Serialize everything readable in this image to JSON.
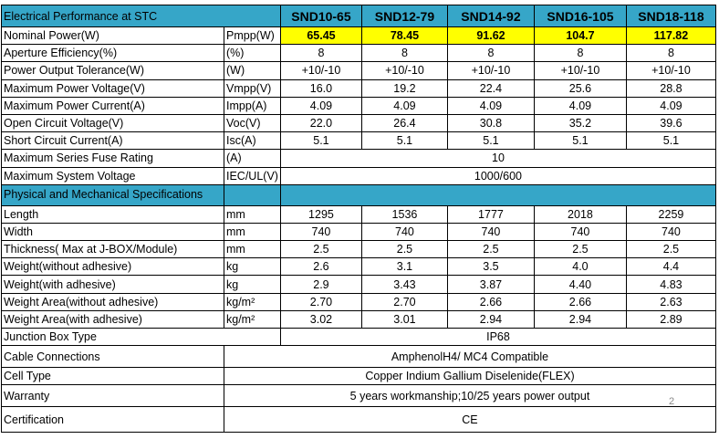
{
  "header": {
    "title": "Electrical Performance at STC",
    "models": [
      "SND10-65",
      "SND12-79",
      "SND14-92",
      "SND16-105",
      "SND18-118"
    ]
  },
  "electrical": {
    "nominal_power": {
      "label": "Nominal Power(W)",
      "unit": "Pmpp(W)",
      "values": [
        "65.45",
        "78.45",
        "91.62",
        "104.7",
        "117.82"
      ]
    },
    "aperture_efficiency": {
      "label": "Aperture Efficiency(%)",
      "unit": "(%)",
      "values": [
        "8",
        "8",
        "8",
        "8",
        "8"
      ]
    },
    "power_tolerance": {
      "label": "Power Output Tolerance(W)",
      "unit": "(W)",
      "values": [
        "+10/-10",
        "+10/-10",
        "+10/-10",
        "+10/-10",
        "+10/-10"
      ]
    },
    "max_power_voltage": {
      "label": "Maximum Power Voltage(V)",
      "unit": "Vmpp(V)",
      "values": [
        "16.0",
        "19.2",
        "22.4",
        "25.6",
        "28.8"
      ]
    },
    "max_power_current": {
      "label": "Maximum Power Current(A)",
      "unit": "Impp(A)",
      "values": [
        "4.09",
        "4.09",
        "4.09",
        "4.09",
        "4.09"
      ]
    },
    "open_circuit_voltage": {
      "label": "Open Circuit Voltage(V)",
      "unit": "Voc(V)",
      "values": [
        "22.0",
        "26.4",
        "30.8",
        "35.2",
        "39.6"
      ]
    },
    "short_circuit_current": {
      "label": "Short Circuit Current(A)",
      "unit": "Isc(A)",
      "values": [
        "5.1",
        "5.1",
        "5.1",
        "5.1",
        "5.1"
      ]
    },
    "max_series_fuse": {
      "label": "Maximum Series Fuse Rating",
      "unit": "(A)",
      "value": "10"
    },
    "max_system_voltage": {
      "label": "Maximum System Voltage",
      "unit": "IEC/UL(V)",
      "value": "1000/600"
    }
  },
  "section2": {
    "title": "Physical and Mechanical Specifications"
  },
  "physical": {
    "length": {
      "label": "Length",
      "unit": "mm",
      "values": [
        "1295",
        "1536",
        "1777",
        "2018",
        "2259"
      ]
    },
    "width": {
      "label": "Width",
      "unit": "mm",
      "values": [
        "740",
        "740",
        "740",
        "740",
        "740"
      ]
    },
    "thickness": {
      "label": "Thickness( Max at J-BOX/Module)",
      "unit": "mm",
      "values": [
        "2.5",
        "2.5",
        "2.5",
        "2.5",
        "2.5"
      ]
    },
    "weight_no_adhesive": {
      "label": "Weight(without adhesive)",
      "unit": "kg",
      "values": [
        "2.6",
        "3.1",
        "3.5",
        "4.0",
        "4.4"
      ]
    },
    "weight_adhesive": {
      "label": "Weight(with adhesive)",
      "unit": "kg",
      "values": [
        "2.9",
        "3.43",
        "3.87",
        "4.40",
        "4.83"
      ]
    },
    "area_no_adhesive": {
      "label": "Weight Area(without adhesive)",
      "unit": "kg/m²",
      "values": [
        "2.70",
        "2.70",
        "2.66",
        "2.66",
        "2.63"
      ]
    },
    "area_adhesive": {
      "label": "Weight Area(with adhesive)",
      "unit": "kg/m²",
      "values": [
        "3.02",
        "3.01",
        "2.94",
        "2.94",
        "2.89"
      ]
    },
    "junction_box": {
      "label": "Junction Box Type",
      "value": "IP68"
    },
    "cable_connections": {
      "label": "Cable Connections",
      "value": "AmphenolH4/ MC4 Compatible"
    },
    "cell_type": {
      "label": "Cell Type",
      "value": "Copper Indium Gallium Diselenide(FLEX)"
    },
    "warranty": {
      "label": "Warranty",
      "value": "5 years workmanship;10/25 years power output"
    },
    "certification": {
      "label": "Certification",
      "value": "CE"
    }
  },
  "page_number": "2",
  "colors": {
    "header_bg": "#36a6c8",
    "highlight": "#ffff00"
  }
}
